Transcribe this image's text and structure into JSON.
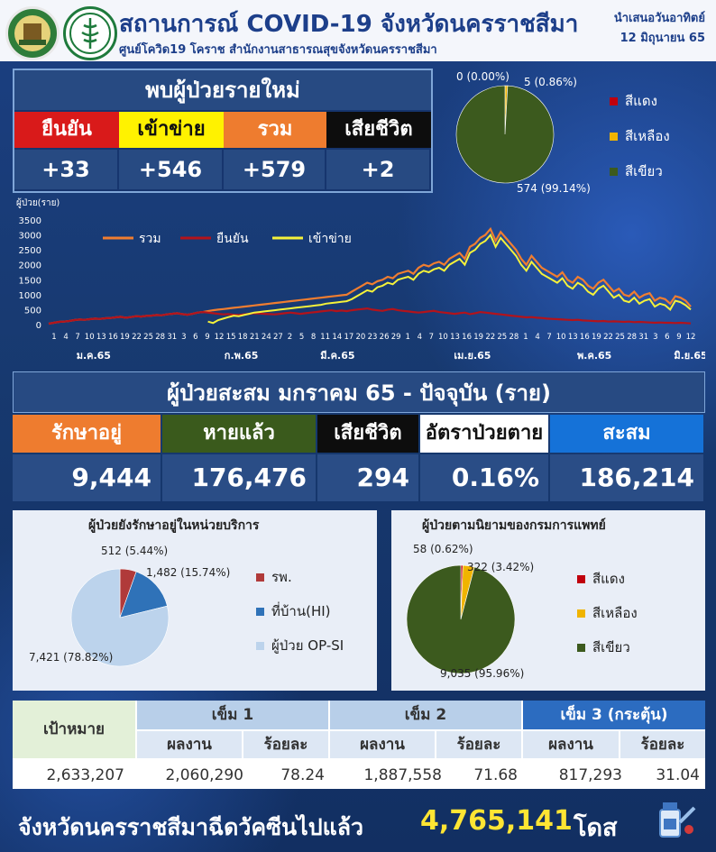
{
  "header": {
    "title": "สถานการณ์ COVID-19 จังหวัดนครราชสีมา",
    "subtitle": "ศูนย์โควิด19 โคราช สำนักงานสาธารณสุขจังหวัดนครราชสีมา",
    "presented": "นำเสนอวันอาทิตย์",
    "date": "12 มิถุนายน 65"
  },
  "new_cases": {
    "title": "พบผู้ป่วยรายใหม่",
    "items": [
      {
        "label": "ยืนยัน",
        "value": "+33",
        "color": "#d91a1a",
        "text_color": "#ffffff"
      },
      {
        "label": "เข้าข่าย",
        "value": "+546",
        "color": "#fff200",
        "text_color": "#111111"
      },
      {
        "label": "รวม",
        "value": "+579",
        "color": "#ee7c2f",
        "text_color": "#ffffff"
      },
      {
        "label": "เสียชีวิต",
        "value": "+2",
        "color": "#0d0d0d",
        "text_color": "#ffffff"
      }
    ]
  },
  "severity_top": {
    "labels": {
      "zero": "0 (0.00%)",
      "yellow": "5 (0.86%)",
      "green": "574 (99.14%)"
    },
    "legend": [
      {
        "label": "สีแดง",
        "color": "#c0000d"
      },
      {
        "label": "สีเหลือง",
        "color": "#f0b400"
      },
      {
        "label": "สีเขียว",
        "color": "#3c5a1e"
      }
    ],
    "values": [
      0,
      5,
      574
    ]
  },
  "chart_data": {
    "type": "line",
    "ylabel": "ผู้ป่วย(ราย)",
    "yticks": [
      "3500",
      "3000",
      "2500",
      "2000",
      "1500",
      "1000",
      "500",
      "0"
    ],
    "ylim": [
      0,
      3500
    ],
    "xticks": [
      "1",
      "4",
      "7",
      "10",
      "13",
      "16",
      "19",
      "22",
      "25",
      "28",
      "31",
      "3",
      "6",
      "9",
      "12",
      "15",
      "18",
      "21",
      "24",
      "27",
      "2",
      "5",
      "8",
      "11",
      "14",
      "17",
      "20",
      "23",
      "26",
      "29",
      "1",
      "4",
      "7",
      "10",
      "13",
      "16",
      "19",
      "22",
      "25",
      "28",
      "1",
      "4",
      "7",
      "10",
      "13",
      "16",
      "19",
      "22",
      "25",
      "28",
      "31",
      "3",
      "6",
      "9",
      "12"
    ],
    "months": [
      "ม.ค.65",
      "ก.พ.65",
      "มี.ค.65",
      "เม.ย.65",
      "พ.ค.65",
      "มิ.ย.65"
    ],
    "series": [
      {
        "name": "รวม",
        "color": "#f07d30",
        "values": [
          30,
          60,
          90,
          100,
          120,
          150,
          170,
          160,
          180,
          200,
          190,
          210,
          220,
          240,
          260,
          230,
          250,
          280,
          270,
          290,
          300,
          320,
          310,
          340,
          360,
          380,
          350,
          330,
          360,
          400,
          420,
          450,
          480,
          500,
          520,
          540,
          560,
          580,
          600,
          620,
          640,
          660,
          680,
          700,
          720,
          740,
          760,
          780,
          800,
          820,
          840,
          860,
          880,
          900,
          920,
          940,
          960,
          980,
          1000,
          1100,
          1200,
          1300,
          1400,
          1350,
          1450,
          1500,
          1600,
          1550,
          1700,
          1750,
          1800,
          1700,
          1900,
          2000,
          1950,
          2050,
          2100,
          2000,
          2200,
          2300,
          2400,
          2200,
          2600,
          2700,
          2900,
          3000,
          3200,
          2800,
          3100,
          2900,
          2700,
          2500,
          2200,
          2000,
          2300,
          2100,
          1900,
          1800,
          1700,
          1600,
          1750,
          1500,
          1400,
          1600,
          1500,
          1300,
          1200,
          1400,
          1500,
          1300,
          1100,
          1200,
          1000,
          950,
          1100,
          900,
          1000,
          1050,
          800,
          900,
          850,
          700,
          950,
          900,
          800,
          600
        ]
      },
      {
        "name": "ยืนยัน",
        "color": "#b3131b",
        "values": [
          30,
          60,
          90,
          100,
          120,
          150,
          170,
          160,
          180,
          200,
          190,
          210,
          220,
          240,
          260,
          230,
          250,
          280,
          270,
          290,
          300,
          320,
          310,
          340,
          360,
          380,
          350,
          330,
          360,
          400,
          420,
          400,
          380,
          360,
          340,
          350,
          330,
          320,
          340,
          360,
          380,
          370,
          360,
          350,
          340,
          360,
          380,
          400,
          380,
          360,
          380,
          400,
          420,
          440,
          460,
          480,
          450,
          470,
          450,
          480,
          500,
          520,
          540,
          500,
          480,
          460,
          500,
          520,
          480,
          460,
          440,
          420,
          400,
          420,
          440,
          460,
          420,
          400,
          380,
          360,
          380,
          400,
          350,
          380,
          420,
          400,
          380,
          360,
          340,
          320,
          300,
          280,
          260,
          240,
          250,
          230,
          220,
          200,
          190,
          180,
          170,
          160,
          150,
          160,
          140,
          130,
          120,
          110,
          120,
          100,
          110,
          100,
          90,
          100,
          80,
          90,
          80,
          70,
          60,
          70,
          60,
          60,
          50,
          60,
          50,
          40
        ]
      },
      {
        "name": "เข้าข่าย",
        "color": "#f5f23a",
        "values": [
          null,
          null,
          null,
          null,
          null,
          null,
          null,
          null,
          null,
          null,
          null,
          null,
          null,
          null,
          null,
          null,
          null,
          null,
          null,
          null,
          null,
          null,
          null,
          null,
          null,
          null,
          null,
          null,
          null,
          null,
          null,
          100,
          50,
          150,
          200,
          250,
          300,
          280,
          320,
          360,
          400,
          420,
          440,
          460,
          480,
          500,
          520,
          540,
          560,
          580,
          600,
          620,
          640,
          660,
          700,
          720,
          740,
          760,
          780,
          850,
          950,
          1050,
          1150,
          1100,
          1250,
          1300,
          1400,
          1350,
          1500,
          1550,
          1600,
          1500,
          1700,
          1800,
          1750,
          1850,
          1900,
          1800,
          2000,
          2100,
          2200,
          2000,
          2400,
          2500,
          2700,
          2800,
          3000,
          2600,
          2900,
          2700,
          2500,
          2300,
          2000,
          1800,
          2100,
          1900,
          1700,
          1600,
          1500,
          1400,
          1550,
          1300,
          1200,
          1400,
          1300,
          1100,
          1000,
          1200,
          1300,
          1100,
          900,
          1000,
          800,
          750,
          900,
          700,
          800,
          850,
          600,
          700,
          650,
          500,
          800,
          750,
          650,
          500
        ]
      }
    ]
  },
  "cumulative": {
    "title": "ผู้ป่วยสะสม มกราคม 65 - ปัจจุบัน (ราย)",
    "items": [
      {
        "label": "รักษาอยู่",
        "value": "9,444",
        "color": "#ee7c2f",
        "text_color": "#ffffff"
      },
      {
        "label": "หายแล้ว",
        "value": "176,476",
        "color": "#3a5a1c",
        "text_color": "#ffffff"
      },
      {
        "label": "เสียชีวิต",
        "value": "294",
        "color": "#0d0d0d",
        "text_color": "#ffffff"
      },
      {
        "label": "อัตราป่วยตาย",
        "value": "0.16%",
        "color": "#ffffff",
        "text_color": "#111111"
      },
      {
        "label": "สะสม",
        "value": "186,214",
        "color": "#1572d8",
        "text_color": "#ffffff"
      }
    ]
  },
  "service": {
    "title": "ผู้ป่วยยังรักษาอยู่ในหน่วยบริการ",
    "labels": {
      "a": "512 (5.44%)",
      "b": "1,482 (15.74%)",
      "c": "7,421 (78.82%)"
    },
    "values": [
      512,
      1482,
      7421
    ],
    "legend": [
      {
        "label": "รพ.",
        "color": "#b03a3a"
      },
      {
        "label": "ที่บ้าน(HI)",
        "color": "#2f72b8"
      },
      {
        "label": "ผู้ป่วย OP-SI",
        "color": "#bcd3ec"
      }
    ]
  },
  "definition": {
    "title": "ผู้ป่วยตามนิยามของกรมการแพทย์",
    "labels": {
      "a": "58 (0.62%)",
      "b": "322 (3.42%)",
      "c": "9,035 (95.96%)"
    },
    "values": [
      58,
      322,
      9035
    ],
    "legend": [
      {
        "label": "สีแดง",
        "color": "#c0000d"
      },
      {
        "label": "สีเหลือง",
        "color": "#f0b400"
      },
      {
        "label": "สีเขียว",
        "color": "#3c5a1e"
      }
    ]
  },
  "vaccine": {
    "target_label": "เป้าหมาย",
    "target_value": "2,633,207",
    "dose1": "เข็ม 1",
    "dose2": "เข็ม 2",
    "dose3": "เข็ม 3 (กระตุ้น)",
    "work": "ผลงาน",
    "pct": "ร้อยละ",
    "d1_work": "2,060,290",
    "d1_pct": "78.24",
    "d2_work": "1,887,558",
    "d2_pct": "71.68",
    "d3_work": "817,293",
    "d3_pct": "31.04",
    "summary_text": "จังหวัดนครราชสีมาฉีดวัคซีนไปแล้ว",
    "summary_value": "4,765,141",
    "summary_unit": "โดส"
  }
}
